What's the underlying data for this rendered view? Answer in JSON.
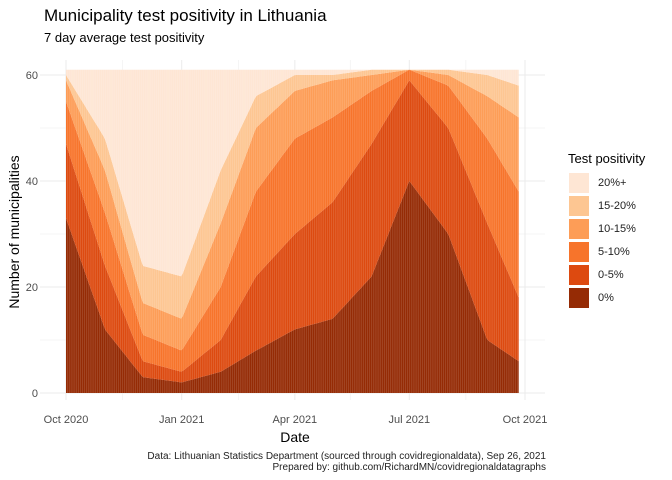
{
  "title": "Municipality test positivity in Lithuania",
  "subtitle": "7 day average test positivity",
  "caption": {
    "line1": "Data: Lithuanian Statistics Department (sourced through covidregionaldata), Sep 26, 2021",
    "line2": "Prepared by: github.com/RichardMN/covidregionaldatagraphs"
  },
  "legend": {
    "title": "Test positivity",
    "items": [
      {
        "label": "20%+",
        "color": "#fee6d4"
      },
      {
        "label": "15-20%",
        "color": "#fdc692"
      },
      {
        "label": "10-15%",
        "color": "#fd9d57"
      },
      {
        "label": "5-10%",
        "color": "#f7742b"
      },
      {
        "label": "0-5%",
        "color": "#dd4a10"
      },
      {
        "label": "0%",
        "color": "#952b05"
      }
    ]
  },
  "chart_data": {
    "type": "area",
    "stacked": true,
    "xlabel": "Date",
    "ylabel": "Number of municipalities",
    "x_ticks": [
      "Oct 2020",
      "Jan 2021",
      "Apr 2021",
      "Jul 2021",
      "Oct 2021"
    ],
    "y_ticks": [
      0,
      20,
      40,
      60
    ],
    "ylim": [
      0,
      61
    ],
    "total_municipalities": 61,
    "grid": true,
    "legend_position": "right",
    "x": [
      "2020-10-01",
      "2020-11-01",
      "2020-12-01",
      "2021-01-01",
      "2021-02-01",
      "2021-03-01",
      "2021-04-01",
      "2021-05-01",
      "2021-06-01",
      "2021-07-01",
      "2021-08-01",
      "2021-09-01",
      "2021-09-26"
    ],
    "series": [
      {
        "name": "0%",
        "values": [
          33,
          12,
          3,
          2,
          4,
          8,
          12,
          14,
          22,
          40,
          30,
          10,
          6
        ]
      },
      {
        "name": "0-5%",
        "values": [
          14,
          12,
          3,
          2,
          6,
          14,
          18,
          22,
          25,
          19,
          20,
          22,
          12
        ]
      },
      {
        "name": "5-10%",
        "values": [
          8,
          10,
          5,
          4,
          10,
          16,
          18,
          16,
          10,
          2,
          8,
          16,
          20
        ]
      },
      {
        "name": "10-15%",
        "values": [
          4,
          8,
          6,
          6,
          12,
          12,
          9,
          7,
          3,
          0,
          2,
          8,
          14
        ]
      },
      {
        "name": "15-20%",
        "values": [
          1,
          6,
          7,
          8,
          10,
          6,
          3,
          1,
          1,
          0,
          1,
          4,
          6
        ]
      },
      {
        "name": "20%+",
        "values": [
          1,
          13,
          37,
          39,
          19,
          5,
          1,
          1,
          0,
          0,
          0,
          1,
          3
        ]
      }
    ]
  }
}
